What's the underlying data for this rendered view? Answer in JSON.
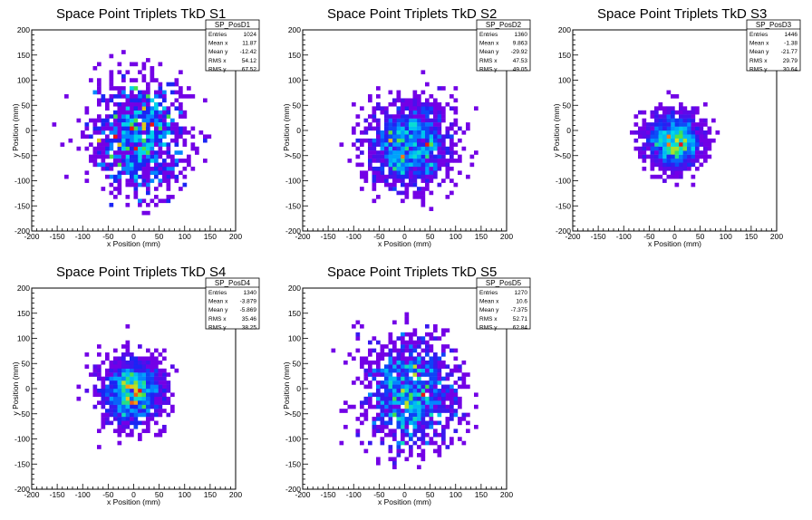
{
  "chart_data": [
    {
      "type": "heatmap",
      "title": "Space Point Triplets TkD S1",
      "xlabel": "x Position (mm)",
      "ylabel": "y Position (mm)",
      "xlim": [
        -200,
        200
      ],
      "ylim": [
        -200,
        200
      ],
      "xticks": [
        "-200",
        "-150",
        "-100",
        "-50",
        "0",
        "50",
        "100",
        "150",
        "200"
      ],
      "yticks": [
        "-200",
        "-150",
        "-100",
        "-50",
        "0",
        "50",
        "100",
        "150",
        "200"
      ],
      "stats": {
        "name": "SP_PosD1",
        "entries": "1024",
        "mean_x": "11.87",
        "mean_y": "-12.42",
        "rms_x": "54.12",
        "rms_y": "67.52"
      }
    },
    {
      "type": "heatmap",
      "title": "Space Point Triplets TkD S2",
      "xlabel": "x Position (mm)",
      "ylabel": "y Position (mm)",
      "xlim": [
        -200,
        200
      ],
      "ylim": [
        -200,
        200
      ],
      "xticks": [
        "-200",
        "-150",
        "-100",
        "-50",
        "0",
        "50",
        "100",
        "150",
        "200"
      ],
      "yticks": [
        "-200",
        "-150",
        "-100",
        "-50",
        "0",
        "50",
        "100",
        "150",
        "200"
      ],
      "stats": {
        "name": "SP_PosD2",
        "entries": "1360",
        "mean_x": "9.863",
        "mean_y": "-29.92",
        "rms_x": "47.53",
        "rms_y": "49.05"
      }
    },
    {
      "type": "heatmap",
      "title": "Space Point Triplets TkD S3",
      "xlabel": "x Position (mm)",
      "ylabel": "y Position (mm)",
      "xlim": [
        -200,
        200
      ],
      "ylim": [
        -200,
        200
      ],
      "xticks": [
        "-200",
        "-150",
        "-100",
        "-50",
        "0",
        "50",
        "100",
        "150",
        "200"
      ],
      "yticks": [
        "-200",
        "-150",
        "-100",
        "-50",
        "0",
        "50",
        "100",
        "150",
        "200"
      ],
      "stats": {
        "name": "SP_PosD3",
        "entries": "1446",
        "mean_x": "-1.38",
        "mean_y": "-21.77",
        "rms_x": "29.79",
        "rms_y": "30.64"
      }
    },
    {
      "type": "heatmap",
      "title": "Space Point Triplets TkD S4",
      "xlabel": "x Position (mm)",
      "ylabel": "y Position (mm)",
      "xlim": [
        -200,
        200
      ],
      "ylim": [
        -200,
        200
      ],
      "xticks": [
        "-200",
        "-150",
        "-100",
        "-50",
        "0",
        "50",
        "100",
        "150",
        "200"
      ],
      "yticks": [
        "-200",
        "-150",
        "-100",
        "-50",
        "0",
        "50",
        "100",
        "150",
        "200"
      ],
      "stats": {
        "name": "SP_PosD4",
        "entries": "1340",
        "mean_x": "-3.879",
        "mean_y": "-5.869",
        "rms_x": "35.46",
        "rms_y": "38.25"
      }
    },
    {
      "type": "heatmap",
      "title": "Space Point Triplets TkD S5",
      "xlabel": "x Position (mm)",
      "ylabel": "y Position (mm)",
      "xlim": [
        -200,
        200
      ],
      "ylim": [
        -200,
        200
      ],
      "xticks": [
        "-200",
        "-150",
        "-100",
        "-50",
        "0",
        "50",
        "100",
        "150",
        "200"
      ],
      "yticks": [
        "-200",
        "-150",
        "-100",
        "-50",
        "0",
        "50",
        "100",
        "150",
        "200"
      ],
      "stats": {
        "name": "SP_PosD5",
        "entries": "1270",
        "mean_x": "10.6",
        "mean_y": "-7.375",
        "rms_x": "52.71",
        "rms_y": "62.84"
      }
    }
  ],
  "stat_labels": {
    "entries": "Entries",
    "mean_x": "Mean x",
    "mean_y": "Mean y",
    "rms_x": "RMS x",
    "rms_y": "RMS y"
  }
}
